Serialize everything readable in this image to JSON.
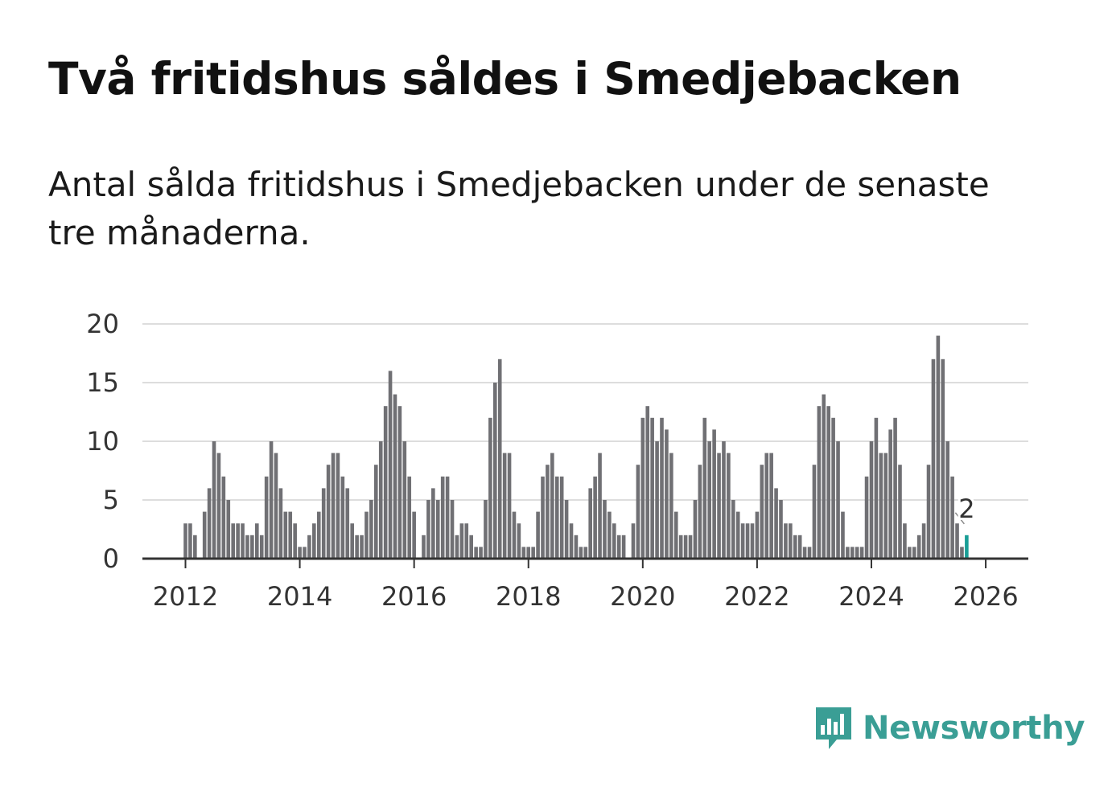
{
  "title": "Två fritidshus såldes i Smedjebacken",
  "subtitle": "Antal sålda fritidshus i Smedjebacken under de senaste tre månaderna.",
  "brand": {
    "name": "Newsworthy",
    "icon": "bar-chart-speech-bubble-icon",
    "color": "#3a9e95"
  },
  "colors": {
    "bars": "#707074",
    "highlight": "#1a9e96",
    "grid": "#dddddd",
    "axis": "#333333"
  },
  "chart_data": {
    "type": "bar",
    "x_unit": "month",
    "start": "2012-01",
    "end": "2026-01",
    "ylim": [
      0,
      20
    ],
    "yticks": [
      "0",
      "5",
      "10",
      "15",
      "20"
    ],
    "xticks": [
      "2012",
      "2014",
      "2016",
      "2018",
      "2020",
      "2022",
      "2024",
      "2026"
    ],
    "grid": true,
    "values": [
      3,
      3,
      2,
      0,
      4,
      6,
      10,
      9,
      7,
      5,
      3,
      3,
      3,
      2,
      2,
      3,
      2,
      7,
      10,
      9,
      6,
      4,
      4,
      3,
      1,
      1,
      2,
      3,
      4,
      6,
      8,
      9,
      9,
      7,
      6,
      3,
      2,
      2,
      4,
      5,
      8,
      10,
      13,
      16,
      14,
      13,
      10,
      7,
      4,
      0,
      2,
      5,
      6,
      5,
      7,
      7,
      5,
      2,
      3,
      3,
      2,
      1,
      1,
      5,
      12,
      15,
      17,
      9,
      9,
      4,
      3,
      1,
      1,
      1,
      4,
      7,
      8,
      9,
      7,
      7,
      5,
      3,
      2,
      1,
      1,
      6,
      7,
      9,
      5,
      4,
      3,
      2,
      2,
      0,
      3,
      8,
      12,
      13,
      12,
      10,
      12,
      11,
      9,
      4,
      2,
      2,
      2,
      5,
      8,
      12,
      10,
      11,
      9,
      10,
      9,
      5,
      4,
      3,
      3,
      3,
      4,
      8,
      9,
      9,
      6,
      5,
      3,
      3,
      2,
      2,
      1,
      1,
      8,
      13,
      14,
      13,
      12,
      10,
      4,
      1,
      1,
      1,
      1,
      7,
      10,
      12,
      9,
      9,
      11,
      12,
      8,
      3,
      1,
      1,
      2,
      3,
      8,
      17,
      19,
      17,
      10,
      7,
      3,
      1,
      2
    ],
    "highlight_label": "2"
  }
}
